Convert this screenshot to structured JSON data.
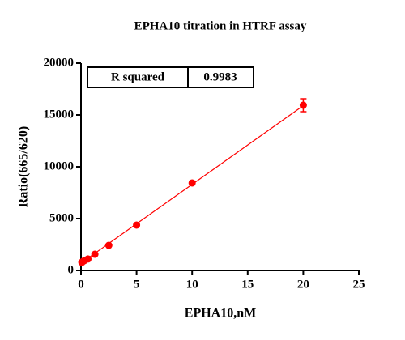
{
  "chart_data": {
    "type": "scatter",
    "title": "EPHA10 titration in HTRF assay",
    "xlabel": "EPHA10,nM",
    "ylabel": "Ratio(665/620)",
    "x": [
      0.078,
      0.156,
      0.3125,
      0.625,
      1.25,
      2.5,
      5,
      10,
      20
    ],
    "values": [
      780,
      850,
      950,
      1100,
      1560,
      2420,
      4375,
      8440,
      15940
    ],
    "errors": [
      null,
      null,
      null,
      null,
      null,
      null,
      null,
      null,
      625
    ],
    "color": "#ff0000",
    "fit": {
      "x": [
        0,
        20
      ],
      "y": [
        700,
        15900
      ]
    },
    "stats": {
      "label": "R squared",
      "value": "0.9983"
    },
    "xlim": [
      0,
      25
    ],
    "xticks": [
      0,
      5,
      10,
      15,
      20,
      25
    ],
    "ylim": [
      0,
      20000
    ],
    "yticks": [
      0,
      5000,
      10000,
      15000,
      20000
    ]
  }
}
